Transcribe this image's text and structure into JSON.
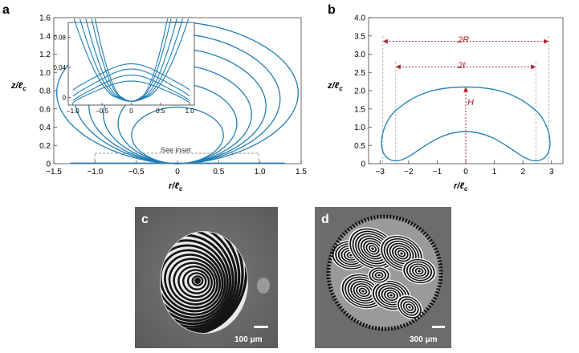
{
  "figure": {
    "panel_a": {
      "label": "a",
      "xlabel": "r/ℓ",
      "xlabel_sub": "c",
      "ylabel": "z/ℓ",
      "ylabel_sub": "c",
      "xticks": [
        "−1.5",
        "−1.0",
        "−0.5",
        "0",
        "0.5",
        "1.0",
        "1.5"
      ],
      "yticks": [
        "0",
        "0.2",
        "0.4",
        "0.6",
        "0.8",
        "1.0",
        "1.2",
        "1.4",
        "1.6"
      ],
      "inset_label": "See inset",
      "inset": {
        "xticks": [
          "−1.0",
          "−0.5",
          "0",
          "0.5",
          "1.0"
        ],
        "yticks": [
          "0",
          "0.04",
          "0.08"
        ]
      }
    },
    "panel_b": {
      "label": "b",
      "xlabel": "r/ℓ",
      "xlabel_sub": "c",
      "ylabel": "z/ℓ",
      "ylabel_sub": "c",
      "xticks": [
        "−3",
        "−2",
        "−1",
        "0",
        "1",
        "2",
        "3"
      ],
      "yticks": [
        "0",
        "0.5",
        "1.0",
        "1.5",
        "2.0",
        "2.5",
        "3.0",
        "3.5",
        "4.0"
      ],
      "annot_2R": "2R",
      "annot_2l": "2ℓ",
      "annot_H": "H"
    },
    "panel_c": {
      "label": "c",
      "scalebar": "100 μm"
    },
    "panel_d": {
      "label": "d",
      "scalebar": "300 μm"
    }
  },
  "colors": {
    "curve": "#1f7fb7",
    "annotation": "#b0202a",
    "guide": "#888888"
  },
  "chart_data": [
    {
      "type": "line",
      "panel": "a",
      "xlim": [
        -1.5,
        1.5
      ],
      "ylim": [
        0,
        1.6
      ],
      "series": [
        {
          "values": [
            {
              "R": 0.5,
              "H": 0.62
            }
          ]
        },
        {
          "values": [
            {
              "R": 0.62,
              "H": 0.88
            }
          ]
        },
        {
          "values": [
            {
              "R": 0.75,
              "H": 1.08
            }
          ]
        },
        {
          "values": [
            {
              "R": 0.88,
              "H": 1.26
            }
          ]
        },
        {
          "values": [
            {
              "R": 1.02,
              "H": 1.42
            }
          ]
        },
        {
          "values": [
            {
              "R": 1.2,
              "H": 1.55
            }
          ]
        }
      ]
    },
    {
      "type": "line",
      "panel": "a-inset",
      "xlim": [
        -1.0,
        1.0
      ],
      "ylim": [
        -0.01,
        0.1
      ]
    },
    {
      "type": "line",
      "panel": "b",
      "xlim": [
        -3.4,
        3.4
      ],
      "ylim": [
        0,
        4.0
      ],
      "R": 2.9,
      "l": 2.45,
      "H": 2.1,
      "inner_top": 0.88
    }
  ]
}
